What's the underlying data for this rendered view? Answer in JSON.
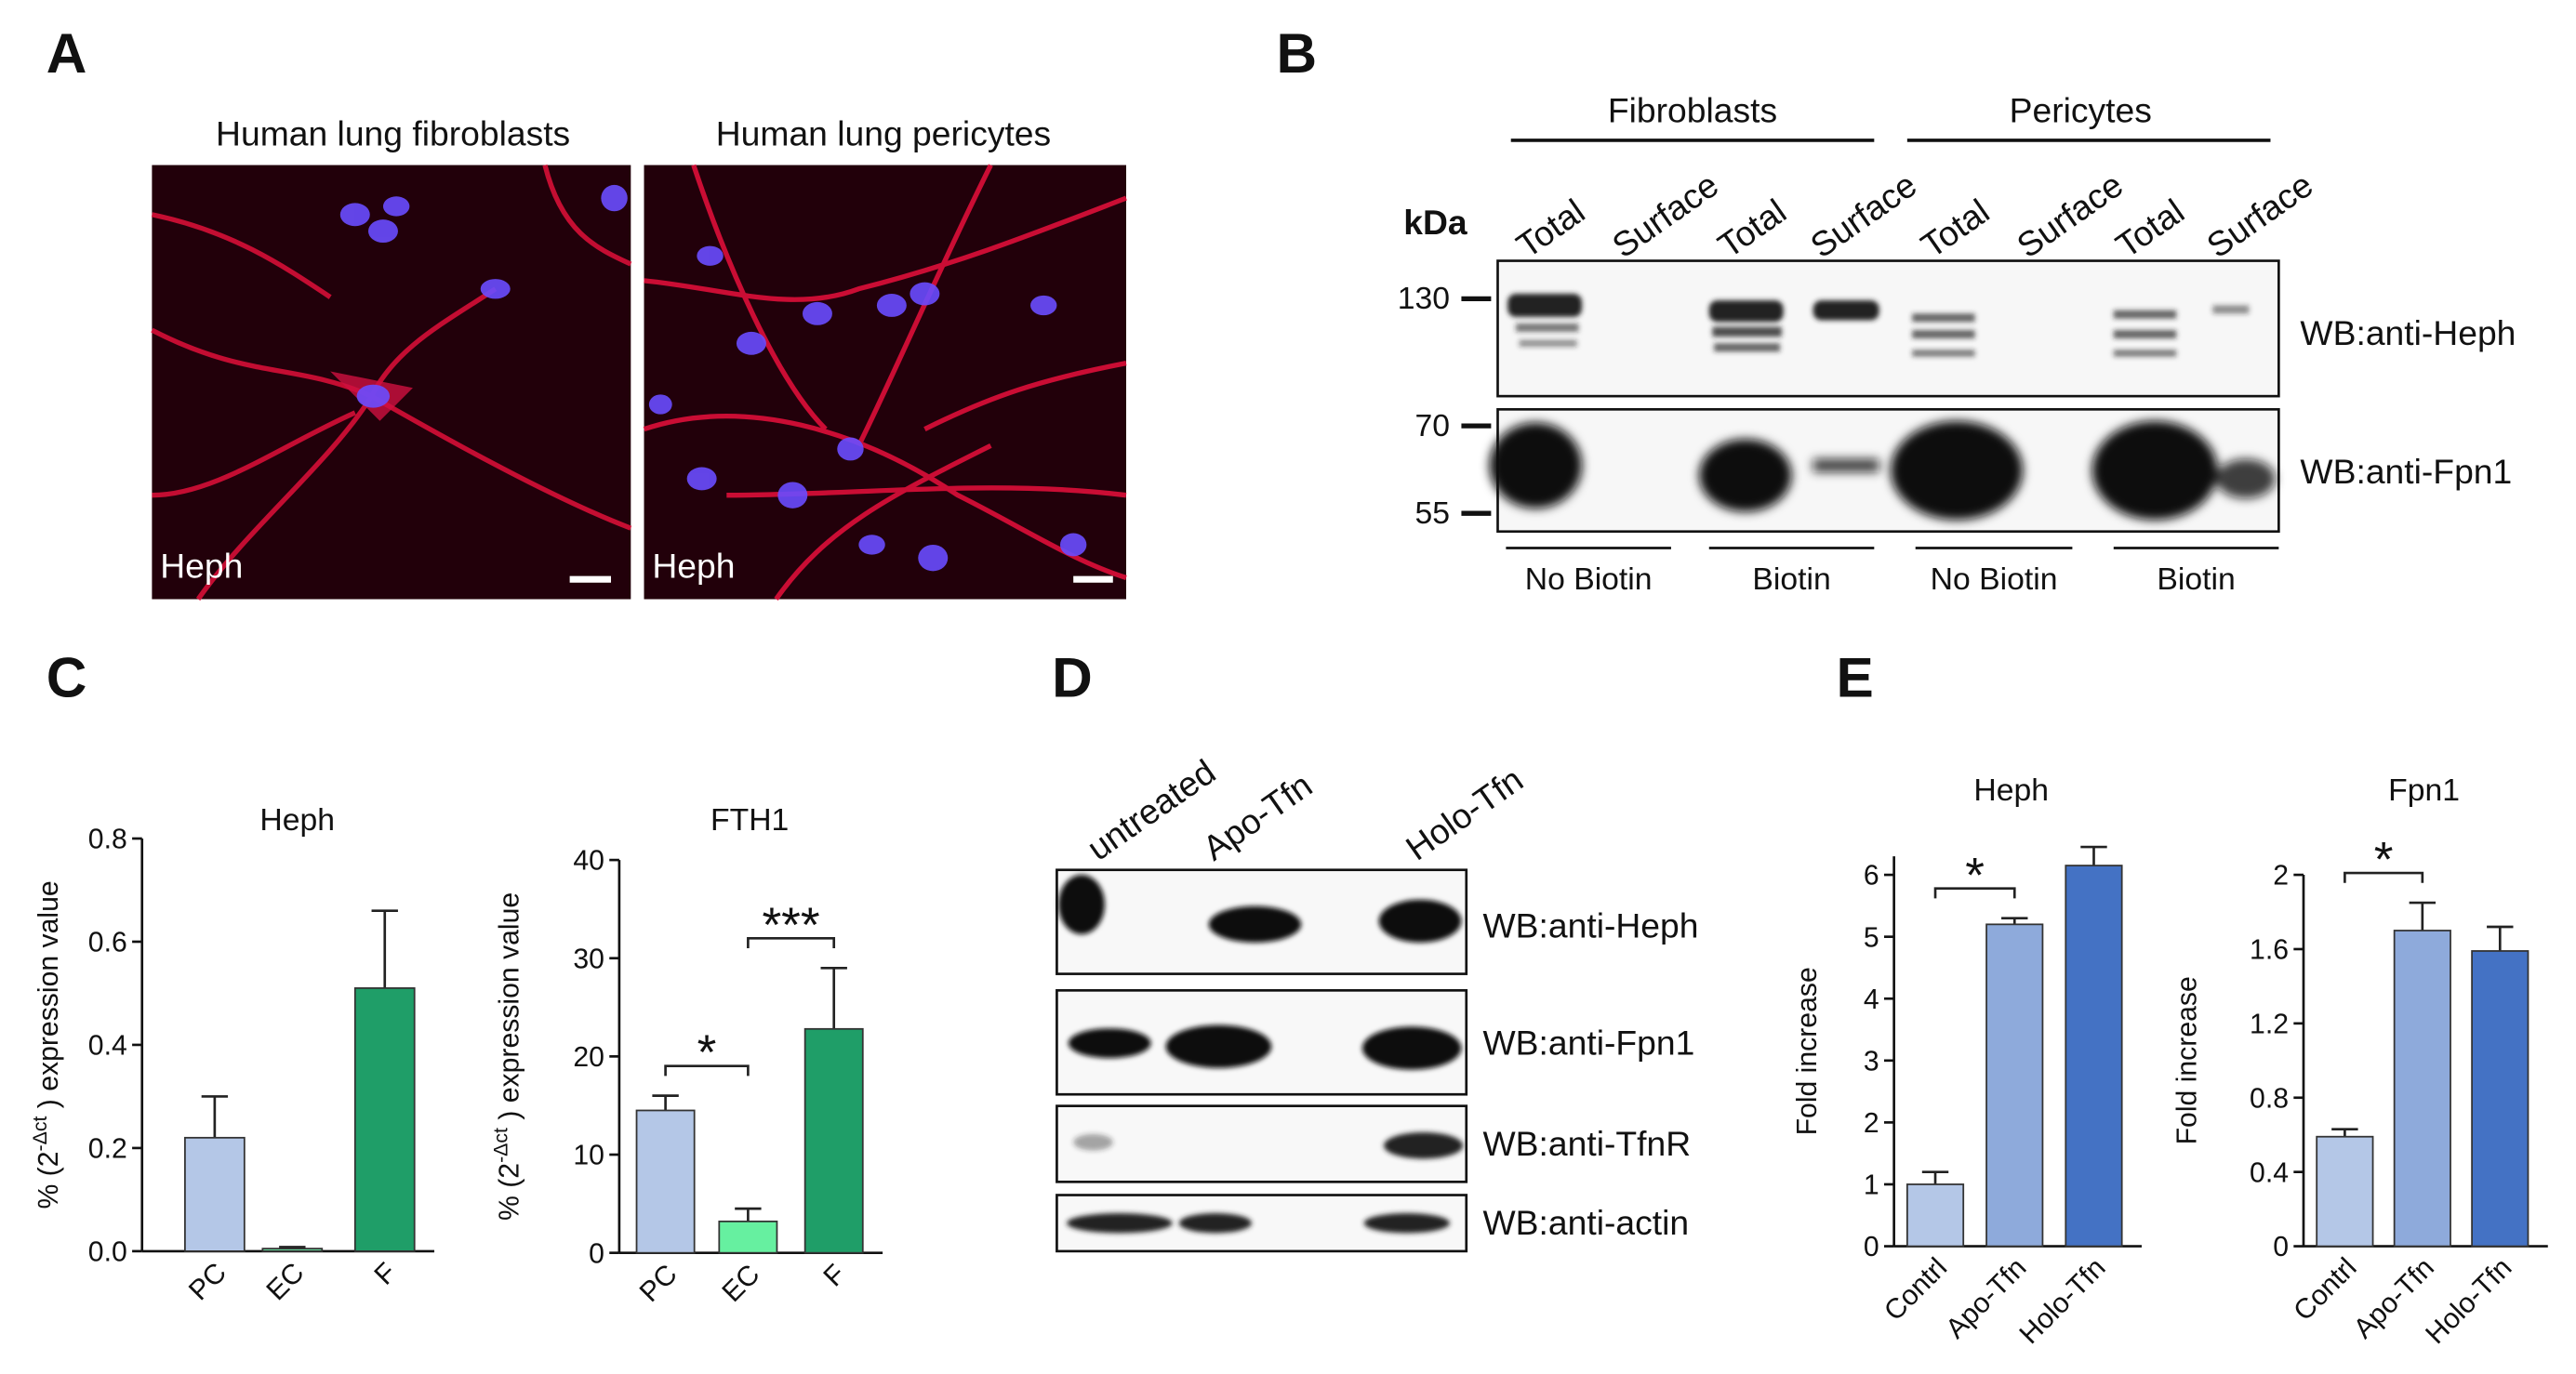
{
  "panels": {
    "A": {
      "letter": "A",
      "images": [
        {
          "title": "Human lung fibroblasts",
          "stain": "Heph"
        },
        {
          "title": "Human lung pericytes",
          "stain": "Heph"
        }
      ]
    },
    "B": {
      "letter": "B",
      "groups": [
        "Fibroblasts",
        "Pericytes"
      ],
      "lanes": [
        "Total",
        "Surface",
        "Total",
        "Surface",
        "Total",
        "Surface",
        "Total",
        "Surface"
      ],
      "unit": "kDa",
      "markers": [
        130,
        70,
        55
      ],
      "blots": [
        "WB:anti-Heph",
        "WB:anti-Fpn1"
      ],
      "conditions": [
        "No Biotin",
        "Biotin",
        "No Biotin",
        "Biotin"
      ]
    },
    "C": {
      "letter": "C"
    },
    "D": {
      "letter": "D",
      "lanes": [
        "untreated",
        "Apo-Tfn",
        "Holo-Tfn"
      ],
      "blots": [
        "WB:anti-Heph",
        "WB:anti-Fpn1",
        "WB:anti-TfnR",
        "WB:anti-actin"
      ]
    },
    "E": {
      "letter": "E"
    }
  },
  "chart_data": [
    {
      "type": "bar",
      "title": "Heph",
      "y_label": [
        "% (2",
        "-Δct",
        " ) expression value"
      ],
      "categories": [
        "PC",
        "EC",
        "F"
      ],
      "values": [
        0.22,
        0.005,
        0.51
      ],
      "errors": [
        0.08,
        0.003,
        0.15
      ],
      "colors": [
        "#b4c7e7",
        "#66e0a0",
        "#1f9e68"
      ],
      "ylim": [
        0,
        0.8
      ],
      "yticks": [
        {
          "value": 0,
          "label": "0.0"
        },
        0.2,
        0.4,
        0.6,
        0.8
      ],
      "annotations": []
    },
    {
      "type": "bar",
      "title": "FTH1",
      "y_label": [
        "% (2",
        "-Δct",
        " ) expression value"
      ],
      "categories": [
        "PC",
        "EC",
        "F"
      ],
      "values": [
        14.5,
        3.2,
        22.8
      ],
      "errors": [
        1.5,
        1.3,
        6.2
      ],
      "colors": [
        "#b4c7e7",
        "#66f0a0",
        "#1f9e68"
      ],
      "ylim": [
        0,
        40
      ],
      "yticks": [
        0,
        10,
        20,
        30,
        40
      ],
      "annotations": [
        {
          "text": "*",
          "between": [
            "PC",
            "EC"
          ]
        },
        {
          "text": "***",
          "between": [
            "EC",
            "F"
          ]
        }
      ]
    },
    {
      "type": "bar",
      "title": "Heph",
      "y_label": [
        "Fold increase"
      ],
      "categories": [
        "Contrl",
        "Apo-Tfn",
        "Holo-Tfn"
      ],
      "values": [
        1.0,
        5.2,
        6.15
      ],
      "errors": [
        0.2,
        0.1,
        0.3
      ],
      "colors": [
        "#b4c7e7",
        "#8eaadb",
        "#4472c4"
      ],
      "ylim": [
        0,
        6.3
      ],
      "yticks": [
        0,
        1,
        2,
        3,
        4,
        5,
        6
      ],
      "annotations": [
        {
          "text": "*",
          "between": [
            "Contrl",
            "Apo-Tfn"
          ]
        }
      ]
    },
    {
      "type": "bar",
      "title": "Fpn1",
      "y_label": [
        "Fold increase"
      ],
      "categories": [
        "Contrl",
        "Apo-Tfn",
        "Holo-Tfn"
      ],
      "values": [
        0.59,
        1.7,
        1.59
      ],
      "errors": [
        0.04,
        0.15,
        0.13
      ],
      "colors": [
        "#b4c7e7",
        "#8eaadb",
        "#4472c4"
      ],
      "ylim": [
        0,
        2
      ],
      "yticks": [
        0,
        0.4,
        0.8,
        1.2,
        1.6,
        2
      ],
      "annotations": [
        {
          "text": "*",
          "between": [
            "Contrl",
            "Apo-Tfn"
          ]
        }
      ]
    }
  ]
}
